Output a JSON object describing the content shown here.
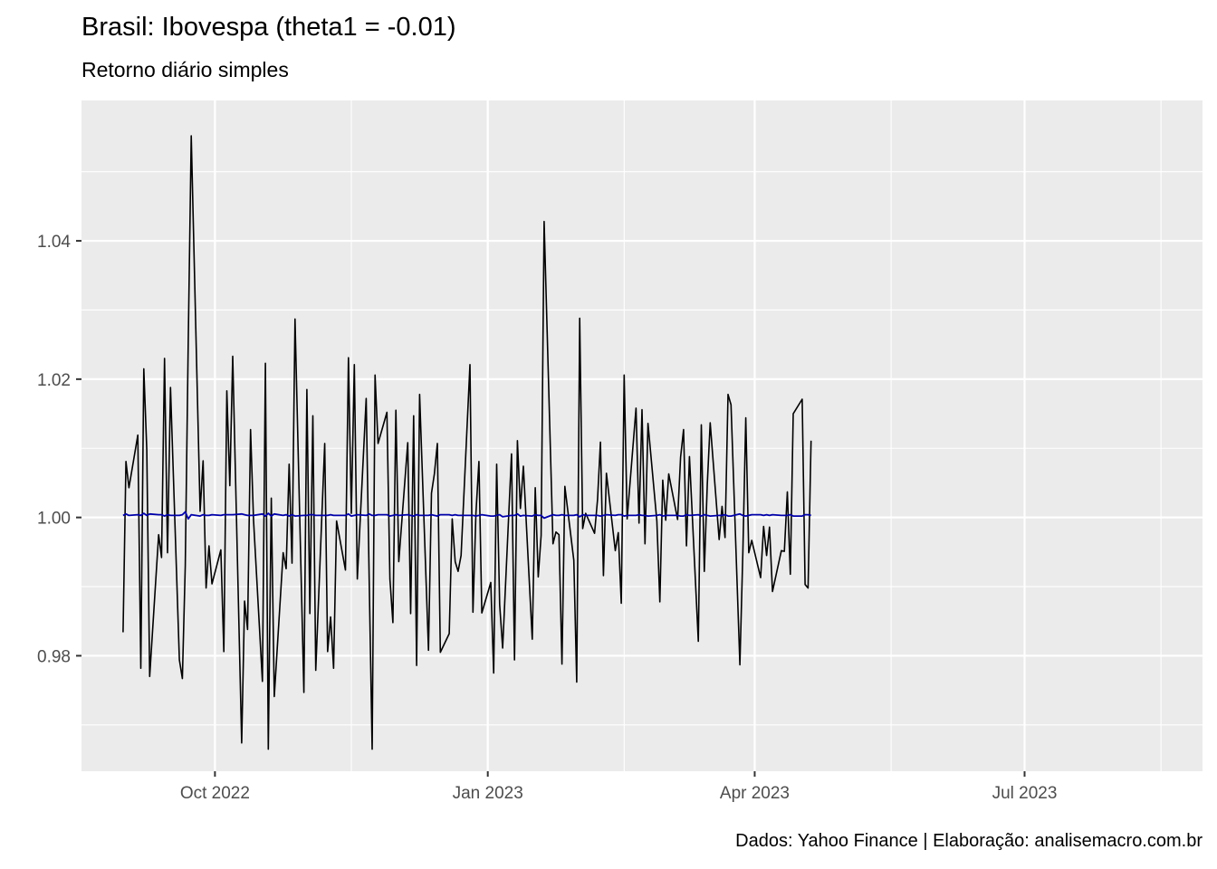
{
  "chart_data": {
    "type": "line",
    "title": "Brasil: Ibovespa (theta1 = -0.01)",
    "subtitle": "Retorno diário simples",
    "caption": "Dados: Yahoo Finance | Elaboração: analisemacro.com.br",
    "xlabel": "",
    "ylabel": "",
    "x_range": [
      "2022-08-17",
      "2023-08-30"
    ],
    "ylim": [
      0.9633,
      1.0603
    ],
    "x_ticks": [
      {
        "date": "2022-10-01",
        "label": "Oct 2022"
      },
      {
        "date": "2023-01-01",
        "label": "Jan 2023"
      },
      {
        "date": "2023-04-01",
        "label": "Apr 2023"
      },
      {
        "date": "2023-07-01",
        "label": "Jul 2023"
      }
    ],
    "y_ticks": [
      0.98,
      1.0,
      1.02,
      1.04
    ],
    "grid": true,
    "legend": "none",
    "colors": {
      "panel": "#ebebeb",
      "grid": "#ffffff",
      "returns": "#000000",
      "fitted": "#0000aa"
    },
    "series": [
      {
        "role": "returns",
        "x_start": "2022-08-31",
        "values": [
          0.9834,
          1.0081,
          1.0043,
          1.0119,
          0.9782,
          1.0215,
          1.0098,
          0.977,
          0.9975,
          0.9942,
          1.023,
          0.9949,
          1.0188,
          0.9794,
          0.9767,
          0.993,
          1.0256,
          1.0552,
          1.0009,
          1.0082,
          0.9898,
          0.9959,
          0.9904,
          0.9953,
          0.9806,
          1.0183,
          1.0046,
          1.0233,
          0.9674,
          0.9879,
          0.9838,
          1.0127,
          0.9996,
          0.9763,
          1.0223,
          0.9665,
          1.0028,
          0.9741,
          0.9949,
          0.9926,
          1.0077,
          0.9934,
          1.0287,
          0.9747,
          1.0185,
          0.9861,
          1.0147,
          0.9779,
          1.0107,
          0.9806,
          0.9856,
          0.9782,
          0.9995,
          0.9924,
          1.0231,
          1.0006,
          1.0221,
          0.9911,
          1.0172,
          0.9911,
          0.9665,
          1.0206,
          1.0107,
          1.0152,
          0.9911,
          0.9848,
          1.0155,
          0.9936,
          1.0108,
          0.9861,
          1.0147,
          0.9786,
          1.0178,
          0.9808,
          1.0035,
          1.0063,
          1.0107,
          0.9805,
          0.9832,
          0.9998,
          0.9936,
          0.9922,
          0.9945,
          1.0221,
          0.9863,
          1.0006,
          1.0081,
          0.9862,
          0.9906,
          0.9775,
          1.0077,
          0.9874,
          0.9811,
          1.0092,
          0.9794,
          1.0111,
          1.0013,
          1.0074,
          0.9824,
          1.0043,
          0.9914,
          0.9974,
          1.0428,
          0.9962,
          0.9979,
          0.9975,
          0.9788,
          1.0045,
          0.9938,
          0.9762,
          1.0288,
          0.9984,
          1.0006,
          0.9977,
          1.0026,
          1.0109,
          0.9916,
          1.0064,
          0.9952,
          0.9978,
          0.9876,
          1.0206,
          0.9998,
          1.0158,
          0.9992,
          1.0156,
          0.9962,
          1.0136,
          0.9995,
          0.9878,
          1.0054,
          0.9996,
          1.0063,
          0.9997,
          1.0087,
          1.0127,
          0.9959,
          1.0088,
          0.9821,
          1.0134,
          0.9922,
          1.0048,
          1.0137,
          0.9968,
          1.0016,
          0.9971,
          1.0178,
          1.0163,
          0.9787,
          0.9951,
          1.0144,
          0.9949,
          0.9967,
          0.9913,
          0.9987,
          0.9945,
          0.9986,
          0.9893,
          0.9952,
          0.9951,
          1.0037,
          0.9918,
          1.015,
          1.0171,
          0.9903,
          0.9898,
          1.0111
        ]
      },
      {
        "role": "fitted",
        "x_start": "2022-08-31",
        "values": [
          1.0003,
          1.0005,
          1.0003,
          1.0004,
          1.0003,
          1.0006,
          1.0003,
          1.0005,
          1.0004,
          1.0004,
          1.0002,
          1.0004,
          1.0003,
          1.0003,
          1.0004,
          1.0008,
          0.9998,
          1.0004,
          1.0002,
          1.0004,
          1.0003,
          1.0003,
          1.0004,
          1.0003,
          1.0004,
          1.0004,
          1.0004,
          1.0004,
          1.0005,
          1.0004,
          1.0003,
          1.0003,
          1.0003,
          1.0005,
          1.0002,
          1.0006,
          1.0002,
          1.0005,
          1.0003,
          1.0004,
          1.0002,
          1.0004,
          1.0002,
          1.0003,
          1.0003,
          1.0004,
          1.0004,
          1.0003,
          1.0003,
          1.0003,
          1.0004,
          1.0003,
          1.0003,
          1.0003,
          1.0005,
          1.0002,
          1.0003,
          1.0004,
          1.0003,
          1.0005,
          1.0003,
          1.0003,
          1.0004,
          1.0004,
          1.0002,
          1.0003,
          1.0004,
          1.0003,
          1.0004,
          1.0003,
          1.0002,
          1.0004,
          1.0003,
          1.0003,
          1.0004,
          1.0003,
          1.0002,
          1.0004,
          1.0004,
          1.0003,
          1.0004,
          1.0003,
          1.0003,
          1.0003,
          1.0003,
          1.0002,
          1.0003,
          1.0004,
          1.0002,
          1.0002,
          1.0003,
          1.0004,
          1.0001,
          1.0003,
          1.0003,
          1.0005,
          1.0002,
          1.0003,
          1.0002,
          1.0004,
          1.0003,
          1.0003,
          0.9999,
          1.0004,
          1.0003,
          1.0003,
          1.0004,
          1.0003,
          1.0003,
          1.0004,
          1.0001,
          1.0004,
          1.0003,
          1.0003,
          1.0003,
          1.0002,
          1.0003,
          1.0004,
          1.0003,
          1.0004,
          1.0004,
          1.0002,
          1.0003,
          1.0003,
          1.0004,
          1.0003,
          1.0003,
          1.0002,
          1.0003,
          1.0004,
          1.0002,
          1.0003,
          1.0003,
          1.0003,
          1.0002,
          1.0002,
          1.0004,
          1.0003,
          1.0004,
          1.0002,
          1.0004,
          1.0003,
          1.0002,
          1.0003,
          1.0003,
          1.0004,
          1.0002,
          1.0002,
          1.0005,
          1.0003,
          1.0002,
          1.0003,
          1.0004,
          1.0004,
          1.0003,
          1.0004,
          1.0003,
          1.0004,
          1.0003,
          1.0003,
          1.0003,
          1.0004,
          1.0002,
          1.0002,
          1.0004,
          1.0004,
          1.0003
        ]
      }
    ]
  }
}
